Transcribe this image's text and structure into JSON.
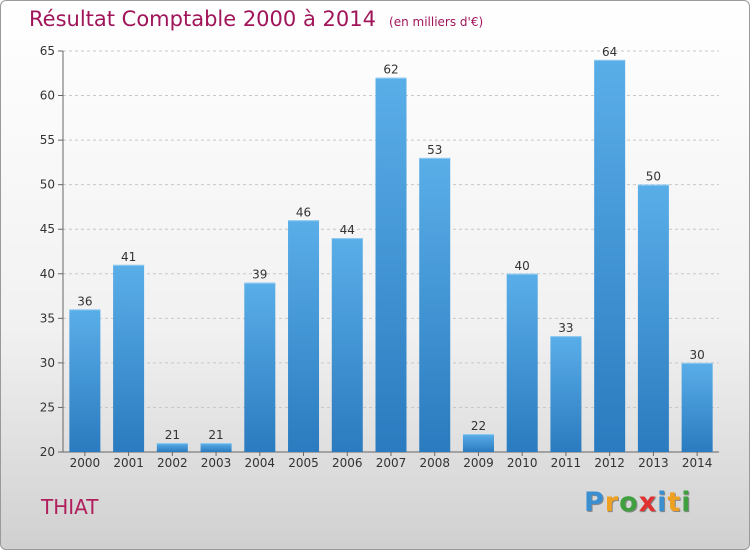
{
  "chart_data": {
    "type": "bar",
    "title": "Résultat Comptable 2000 à 2014",
    "subtitle": "(en milliers d'€)",
    "categories": [
      "2000",
      "2001",
      "2002",
      "2003",
      "2004",
      "2005",
      "2006",
      "2007",
      "2008",
      "2009",
      "2010",
      "2011",
      "2012",
      "2013",
      "2014"
    ],
    "values": [
      36,
      41,
      21,
      21,
      39,
      46,
      44,
      62,
      53,
      22,
      40,
      33,
      64,
      50,
      30
    ],
    "ylim": [
      20,
      65
    ],
    "yticks": [
      20,
      25,
      30,
      35,
      40,
      45,
      50,
      55,
      60,
      65
    ],
    "xlabel": "",
    "ylabel": "",
    "grid": true,
    "colors": {
      "bar_top": "#5aaee8",
      "bar_bottom": "#2a7bbf",
      "title": "#a0155a"
    }
  },
  "commune": "THIAT",
  "logo": {
    "letters": [
      "P",
      "r",
      "o",
      "x",
      "i",
      "t",
      "i"
    ],
    "colors": [
      "#3a8fd0",
      "#f0a020",
      "#40a040",
      "#e03030",
      "#3a8fd0",
      "#f0a020",
      "#40a040"
    ]
  }
}
